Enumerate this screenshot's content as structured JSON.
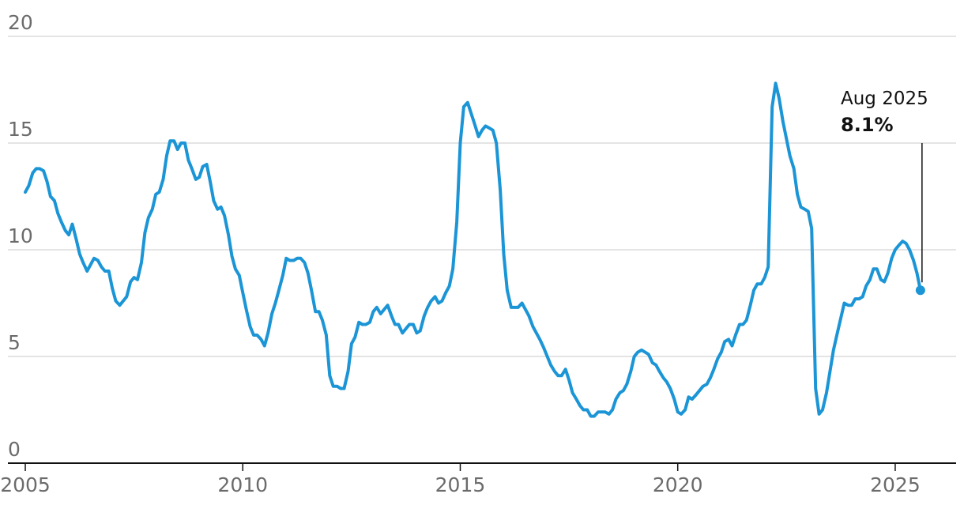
{
  "chart_data": {
    "type": "line",
    "title": "",
    "xlabel": "",
    "ylabel": "",
    "xlim": [
      2004.6,
      2026.4
    ],
    "ylim": [
      0,
      20
    ],
    "grid": true,
    "y_ticks": [
      0,
      5,
      10,
      15,
      20
    ],
    "x_ticks": [
      2005,
      2010,
      2015,
      2020,
      2025
    ],
    "colors": {
      "line": "#1b95d6",
      "grid": "#c9c9c9",
      "axis": "#111111",
      "annotation": "#111111"
    },
    "annotation": {
      "x": 2025.58,
      "y": 8.1,
      "label": "Aug 2025",
      "value": "8.1%"
    },
    "series": [
      {
        "x": [
          2005.0,
          2005.08,
          2005.17,
          2005.25,
          2005.33,
          2005.42,
          2005.5,
          2005.58,
          2005.67,
          2005.75,
          2005.83,
          2005.92,
          2006.0,
          2006.08,
          2006.17,
          2006.25,
          2006.33,
          2006.42,
          2006.5,
          2006.58,
          2006.67,
          2006.75,
          2006.83,
          2006.92,
          2007.0,
          2007.08,
          2007.17,
          2007.25,
          2007.33,
          2007.42,
          2007.5,
          2007.58,
          2007.67,
          2007.75,
          2007.83,
          2007.92,
          2008.0,
          2008.08,
          2008.17,
          2008.25,
          2008.33,
          2008.42,
          2008.5,
          2008.58,
          2008.67,
          2008.75,
          2008.83,
          2008.92,
          2009.0,
          2009.08,
          2009.17,
          2009.25,
          2009.33,
          2009.42,
          2009.5,
          2009.58,
          2009.67,
          2009.75,
          2009.83,
          2009.92,
          2010.0,
          2010.08,
          2010.17,
          2010.25,
          2010.33,
          2010.42,
          2010.5,
          2010.58,
          2010.67,
          2010.75,
          2010.83,
          2010.92,
          2011.0,
          2011.08,
          2011.17,
          2011.25,
          2011.33,
          2011.42,
          2011.5,
          2011.58,
          2011.67,
          2011.75,
          2011.83,
          2011.92,
          2012.0,
          2012.08,
          2012.17,
          2012.25,
          2012.33,
          2012.42,
          2012.5,
          2012.58,
          2012.67,
          2012.75,
          2012.83,
          2012.92,
          2013.0,
          2013.08,
          2013.17,
          2013.25,
          2013.33,
          2013.42,
          2013.5,
          2013.58,
          2013.67,
          2013.75,
          2013.83,
          2013.92,
          2014.0,
          2014.08,
          2014.17,
          2014.25,
          2014.33,
          2014.42,
          2014.5,
          2014.58,
          2014.67,
          2014.75,
          2014.83,
          2014.92,
          2015.0,
          2015.08,
          2015.17,
          2015.25,
          2015.33,
          2015.42,
          2015.5,
          2015.58,
          2015.67,
          2015.75,
          2015.83,
          2015.92,
          2016.0,
          2016.08,
          2016.17,
          2016.25,
          2016.33,
          2016.42,
          2016.5,
          2016.58,
          2016.67,
          2016.75,
          2016.83,
          2016.92,
          2017.0,
          2017.08,
          2017.17,
          2017.25,
          2017.33,
          2017.42,
          2017.5,
          2017.58,
          2017.67,
          2017.75,
          2017.83,
          2017.92,
          2018.0,
          2018.08,
          2018.17,
          2018.25,
          2018.33,
          2018.42,
          2018.5,
          2018.58,
          2018.67,
          2018.75,
          2018.83,
          2018.92,
          2019.0,
          2019.08,
          2019.17,
          2019.25,
          2019.33,
          2019.42,
          2019.5,
          2019.58,
          2019.67,
          2019.75,
          2019.83,
          2019.92,
          2020.0,
          2020.08,
          2020.17,
          2020.25,
          2020.33,
          2020.42,
          2020.5,
          2020.58,
          2020.67,
          2020.75,
          2020.83,
          2020.92,
          2021.0,
          2021.08,
          2021.17,
          2021.25,
          2021.33,
          2021.42,
          2021.5,
          2021.58,
          2021.67,
          2021.75,
          2021.83,
          2021.92,
          2022.0,
          2022.08,
          2022.17,
          2022.25,
          2022.33,
          2022.42,
          2022.5,
          2022.58,
          2022.67,
          2022.75,
          2022.83,
          2022.92,
          2023.0,
          2023.08,
          2023.17,
          2023.25,
          2023.33,
          2023.42,
          2023.5,
          2023.58,
          2023.67,
          2023.75,
          2023.83,
          2023.92,
          2024.0,
          2024.08,
          2024.17,
          2024.25,
          2024.33,
          2024.42,
          2024.5,
          2024.58,
          2024.67,
          2024.75,
          2024.83,
          2024.92,
          2025.0,
          2025.08,
          2025.17,
          2025.25,
          2025.33,
          2025.42,
          2025.5,
          2025.58
        ],
        "values": [
          12.7,
          13.0,
          13.6,
          13.8,
          13.8,
          13.7,
          13.2,
          12.5,
          12.3,
          11.7,
          11.3,
          10.9,
          10.7,
          11.2,
          10.5,
          9.8,
          9.4,
          9.0,
          9.3,
          9.6,
          9.5,
          9.2,
          9.0,
          9.0,
          8.2,
          7.6,
          7.4,
          7.6,
          7.8,
          8.5,
          8.7,
          8.6,
          9.4,
          10.8,
          11.5,
          11.9,
          12.6,
          12.7,
          13.3,
          14.4,
          15.1,
          15.1,
          14.7,
          15.0,
          15.0,
          14.2,
          13.8,
          13.3,
          13.4,
          13.9,
          14.0,
          13.2,
          12.3,
          11.9,
          12.0,
          11.6,
          10.7,
          9.7,
          9.1,
          8.8,
          8.0,
          7.2,
          6.4,
          6.0,
          6.0,
          5.8,
          5.5,
          6.1,
          7.0,
          7.5,
          8.1,
          8.8,
          9.6,
          9.5,
          9.5,
          9.6,
          9.6,
          9.4,
          8.9,
          8.1,
          7.1,
          7.1,
          6.7,
          6.0,
          4.1,
          3.6,
          3.6,
          3.5,
          3.5,
          4.3,
          5.6,
          5.9,
          6.6,
          6.5,
          6.5,
          6.6,
          7.1,
          7.3,
          7.0,
          7.2,
          7.4,
          6.9,
          6.5,
          6.5,
          6.1,
          6.3,
          6.5,
          6.5,
          6.1,
          6.2,
          6.9,
          7.3,
          7.6,
          7.8,
          7.5,
          7.6,
          8.0,
          8.3,
          9.1,
          11.3,
          15.0,
          16.7,
          16.9,
          16.4,
          15.9,
          15.3,
          15.6,
          15.8,
          15.7,
          15.6,
          15.0,
          12.8,
          9.8,
          8.1,
          7.3,
          7.3,
          7.3,
          7.5,
          7.2,
          6.9,
          6.4,
          6.1,
          5.8,
          5.4,
          5.0,
          4.6,
          4.3,
          4.1,
          4.1,
          4.4,
          3.9,
          3.3,
          3.0,
          2.7,
          2.5,
          2.5,
          2.2,
          2.2,
          2.4,
          2.4,
          2.4,
          2.3,
          2.5,
          3.0,
          3.3,
          3.4,
          3.7,
          4.3,
          5.0,
          5.2,
          5.3,
          5.2,
          5.1,
          4.7,
          4.6,
          4.3,
          4.0,
          3.8,
          3.5,
          3.0,
          2.4,
          2.3,
          2.5,
          3.1,
          3.0,
          3.2,
          3.4,
          3.6,
          3.7,
          4.0,
          4.4,
          4.9,
          5.2,
          5.7,
          5.8,
          5.5,
          6.0,
          6.5,
          6.5,
          6.7,
          7.4,
          8.1,
          8.4,
          8.4,
          8.7,
          9.2,
          16.7,
          17.8,
          17.1,
          16.0,
          15.2,
          14.4,
          13.8,
          12.6,
          12.0,
          11.9,
          11.8,
          11.0,
          3.5,
          2.3,
          2.5,
          3.3,
          4.3,
          5.3,
          6.1,
          6.8,
          7.5,
          7.4,
          7.4,
          7.7,
          7.7,
          7.8,
          8.3,
          8.6,
          9.1,
          9.1,
          8.6,
          8.5,
          8.9,
          9.6,
          10.0,
          10.2,
          10.4,
          10.3,
          10.0,
          9.5,
          8.9,
          8.1
        ]
      }
    ]
  }
}
